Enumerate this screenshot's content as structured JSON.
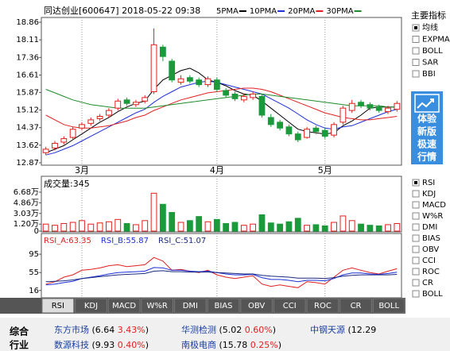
{
  "chart_data": [
    {
      "type": "candlestick",
      "title": "同达创业[600647] 2018-05-22 09:38",
      "categories": [
        null,
        null,
        null,
        null,
        "3月",
        null,
        null,
        null,
        null,
        null,
        null,
        null,
        null,
        null,
        null,
        null,
        null,
        null,
        null,
        "4月",
        null,
        null,
        null,
        null,
        null,
        null,
        null,
        null,
        null,
        null,
        null,
        "5月",
        null,
        null,
        null,
        null,
        null,
        null,
        null,
        null
      ],
      "open": [
        13.3,
        13.5,
        13.75,
        13.95,
        14.35,
        14.55,
        14.75,
        14.9,
        15.2,
        15.55,
        15.35,
        15.5,
        15.9,
        17.8,
        17.2,
        16.3,
        16.5,
        16.4,
        16.2,
        16.4,
        15.95,
        15.8,
        15.55,
        15.65,
        15.7,
        14.8,
        14.6,
        14.4,
        14.1,
        13.95,
        14.35,
        14.25,
        14.05,
        14.6,
        15.1,
        15.45,
        15.35,
        15.25,
        15.05,
        15.15
      ],
      "high": [
        13.55,
        13.8,
        14.0,
        14.4,
        14.6,
        14.8,
        14.95,
        15.2,
        15.6,
        15.65,
        15.55,
        15.75,
        18.6,
        17.9,
        17.3,
        16.6,
        16.6,
        16.5,
        16.55,
        16.5,
        16.05,
        15.9,
        15.8,
        15.9,
        15.8,
        14.95,
        14.7,
        14.5,
        14.2,
        14.4,
        14.45,
        14.35,
        14.6,
        15.3,
        15.55,
        15.55,
        15.45,
        15.35,
        15.3,
        15.5
      ],
      "low": [
        13.2,
        13.4,
        13.65,
        13.85,
        14.25,
        14.45,
        14.65,
        14.8,
        15.1,
        15.3,
        15.25,
        15.4,
        15.8,
        17.2,
        16.3,
        16.2,
        16.25,
        16.1,
        16.1,
        15.9,
        15.65,
        15.5,
        15.45,
        15.55,
        14.8,
        14.4,
        14.25,
        14.0,
        13.75,
        13.9,
        14.1,
        13.9,
        13.95,
        14.5,
        15.0,
        15.2,
        15.1,
        15.0,
        14.95,
        15.05
      ],
      "close": [
        13.45,
        13.7,
        13.9,
        14.3,
        14.5,
        14.7,
        14.85,
        15.1,
        15.5,
        15.4,
        15.45,
        15.65,
        17.9,
        17.4,
        16.4,
        16.45,
        16.35,
        16.2,
        16.45,
        16.0,
        15.75,
        15.6,
        15.7,
        15.8,
        14.9,
        14.5,
        14.35,
        14.1,
        13.85,
        14.3,
        14.2,
        14.0,
        14.5,
        15.2,
        15.4,
        15.3,
        15.2,
        15.1,
        15.2,
        15.4
      ],
      "up_color": "#e0201c",
      "down_color": "#1a9a3a",
      "ylim": [
        12.87,
        18.86
      ],
      "yticks": [
        12.87,
        13.62,
        14.37,
        15.12,
        15.87,
        16.61,
        17.36,
        18.11,
        18.86
      ],
      "series": [
        {
          "name": "5PMA",
          "color": "#000000",
          "values": [
            13.3,
            13.45,
            13.6,
            13.85,
            14.1,
            14.35,
            14.6,
            14.8,
            15.05,
            15.25,
            15.4,
            15.5,
            16.0,
            16.4,
            16.6,
            16.8,
            16.9,
            16.7,
            16.4,
            16.3,
            16.15,
            15.95,
            15.8,
            15.75,
            15.5,
            15.2,
            14.9,
            14.6,
            14.3,
            14.2,
            14.15,
            14.1,
            14.15,
            14.45,
            14.65,
            14.9,
            15.2,
            15.25,
            15.25,
            15.25
          ]
        },
        {
          "name": "10PMA",
          "color": "#1c2fd8",
          "values": [
            13.2,
            13.3,
            13.45,
            13.6,
            13.8,
            14.0,
            14.2,
            14.4,
            14.6,
            14.8,
            15.0,
            15.15,
            15.45,
            15.7,
            15.9,
            16.1,
            16.2,
            16.3,
            16.35,
            16.3,
            16.2,
            16.1,
            16.0,
            15.9,
            15.8,
            15.6,
            15.4,
            15.2,
            14.95,
            14.7,
            14.5,
            14.35,
            14.3,
            14.4,
            14.45,
            14.6,
            14.75,
            14.9,
            15.05,
            15.15
          ]
        },
        {
          "name": "20PMA",
          "color": "#e02020",
          "values": [
            14.9,
            14.7,
            14.5,
            14.4,
            14.35,
            14.35,
            14.4,
            14.45,
            14.55,
            14.65,
            14.8,
            14.9,
            15.1,
            15.25,
            15.4,
            15.55,
            15.65,
            15.75,
            15.85,
            15.9,
            15.95,
            16.0,
            16.05,
            16.05,
            16.0,
            15.9,
            15.75,
            15.6,
            15.45,
            15.3,
            15.15,
            15.0,
            14.9,
            14.8,
            14.75,
            14.7,
            14.7,
            14.75,
            14.8,
            14.85
          ]
        },
        {
          "name": "30PMA",
          "color": "#1f8a2a",
          "values": [
            16.0,
            15.85,
            15.7,
            15.55,
            15.45,
            15.35,
            15.3,
            15.25,
            15.2,
            15.2,
            15.2,
            15.2,
            15.25,
            15.3,
            15.35,
            15.4,
            15.45,
            15.5,
            15.55,
            15.6,
            15.65,
            15.7,
            15.75,
            15.8,
            15.8,
            15.75,
            15.7,
            15.65,
            15.6,
            15.55,
            15.5,
            15.45,
            15.4,
            15.35,
            15.3,
            15.3,
            15.3,
            15.3,
            15.25,
            15.25
          ]
        }
      ]
    },
    {
      "type": "bar",
      "title": "成交量:345",
      "values": [
        1.2,
        1.0,
        1.3,
        1.5,
        1.8,
        1.2,
        1.4,
        1.6,
        2.0,
        1.3,
        1.1,
        1.8,
        6.5,
        4.6,
        3.2,
        1.5,
        1.8,
        2.5,
        1.6,
        2.0,
        1.3,
        1.5,
        1.0,
        1.2,
        2.8,
        1.4,
        1.2,
        1.6,
        2.2,
        1.0,
        1.1,
        0.9,
        1.5,
        2.6,
        1.8,
        1.2,
        1.0,
        0.9,
        1.1,
        1.3
      ],
      "ylim": [
        0,
        7.5
      ],
      "yticks": [
        0,
        {
          "value": 1.2,
          "label": "1.20万"
        },
        {
          "value": 3.03,
          "label": "3.03万"
        },
        {
          "value": 4.86,
          "label": "4.86万"
        },
        {
          "value": 6.68,
          "label": "6.68万"
        }
      ]
    },
    {
      "type": "line",
      "ylim": [
        0,
        135
      ],
      "yticks": [
        16,
        55,
        95
      ],
      "series": [
        {
          "name": "RSI_A:63.35",
          "color": "#e02020",
          "values": [
            30,
            35,
            45,
            50,
            60,
            62,
            65,
            70,
            72,
            68,
            70,
            72,
            88,
            80,
            60,
            62,
            58,
            55,
            60,
            50,
            45,
            42,
            45,
            48,
            30,
            25,
            28,
            25,
            22,
            35,
            33,
            30,
            45,
            60,
            65,
            60,
            55,
            52,
            58,
            63.35
          ]
        },
        {
          "name": "RSI_B:55.87",
          "color": "#1c2fd8",
          "values": [
            28,
            30,
            33,
            36,
            42,
            45,
            48,
            52,
            55,
            56,
            57,
            58,
            66,
            65,
            60,
            60,
            58,
            57,
            58,
            55,
            52,
            50,
            50,
            51,
            44,
            40,
            40,
            38,
            35,
            38,
            38,
            37,
            42,
            50,
            54,
            54,
            52,
            51,
            53,
            55.87
          ]
        },
        {
          "name": "RSI_C:51.07",
          "color": "#1a2a80",
          "values": [
            35,
            36,
            37,
            39,
            42,
            44,
            46,
            48,
            50,
            51,
            52,
            53,
            58,
            59,
            57,
            57,
            56,
            56,
            56,
            55,
            54,
            53,
            52,
            52,
            49,
            47,
            46,
            45,
            43,
            43,
            43,
            42,
            44,
            47,
            49,
            50,
            50,
            50,
            50,
            51.07
          ]
        }
      ]
    }
  ],
  "sidebar": {
    "title": "主要指标",
    "main": [
      {
        "label": "均线",
        "checked": true
      },
      {
        "label": "EXPMA",
        "checked": false
      },
      {
        "label": "BOLL",
        "checked": false
      },
      {
        "label": "SAR",
        "checked": false
      },
      {
        "label": "BBI",
        "checked": false
      }
    ],
    "ad": [
      "体验",
      "新版",
      "极速",
      "行情"
    ],
    "sub": [
      {
        "label": "RSI",
        "checked": true
      },
      {
        "label": "KDJ",
        "checked": false
      },
      {
        "label": "MACD",
        "checked": false
      },
      {
        "label": "W%R",
        "checked": false
      },
      {
        "label": "DMI",
        "checked": false
      },
      {
        "label": "BIAS",
        "checked": false
      },
      {
        "label": "OBV",
        "checked": false
      },
      {
        "label": "CCI",
        "checked": false
      },
      {
        "label": "ROC",
        "checked": false
      },
      {
        "label": "CR",
        "checked": false
      },
      {
        "label": "BOLL",
        "checked": false
      }
    ]
  },
  "tabs": {
    "items": [
      "RSI",
      "KDJ",
      "MACD",
      "W%R",
      "DMI",
      "BIAS",
      "OBV",
      "CCI",
      "ROC",
      "CR",
      "BOLL"
    ],
    "selected": 0
  },
  "footer": {
    "label": [
      "综合",
      "行业"
    ],
    "tickers": [
      {
        "name": "东方市场",
        "price": "6.64",
        "change": "3.43%"
      },
      {
        "name": "华测检测",
        "price": "5.02",
        "change": "0.60%"
      },
      {
        "name": "中钢天源",
        "price": "12.29"
      },
      {
        "name": "数源科技",
        "price": "9.93",
        "change": "0.40%"
      },
      {
        "name": "南极电商",
        "price": "15.78",
        "change": "0.25%"
      }
    ]
  }
}
